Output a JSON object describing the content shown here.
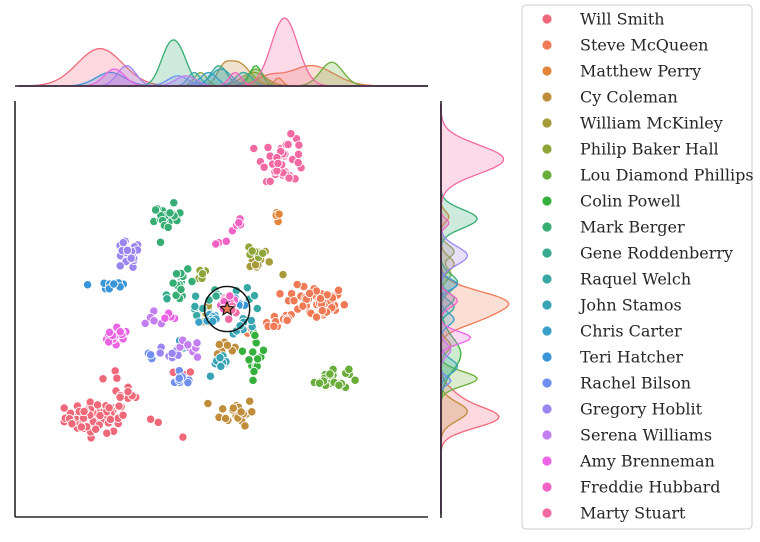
{
  "chart_data": {
    "type": "scatter",
    "title": "",
    "xlabel": "",
    "ylabel": "",
    "grid": false,
    "legend_placement": "right",
    "xlim": [
      -10,
      10
    ],
    "ylim": [
      -10,
      10
    ],
    "marker": {
      "x": 0.2,
      "y": 0.0,
      "ring_radius": 1.1,
      "symbol": "star"
    },
    "series": [
      {
        "name": "Will Smith",
        "color": "#f0697a",
        "clusters": [
          [
            -6.2,
            -5.3,
            1.0,
            0.5,
            70
          ],
          [
            -4.5,
            -4.3,
            1.6,
            0.4,
            14,
            -0.7
          ],
          [
            -2.6,
            -3.2,
            0.9,
            0.2,
            5
          ]
        ]
      },
      {
        "name": "Steve McQueen",
        "color": "#f07a55",
        "clusters": [
          [
            4.5,
            0.3,
            1.0,
            0.55,
            48
          ],
          [
            2.6,
            -0.6,
            0.6,
            0.3,
            10
          ],
          [
            1.4,
            -0.9,
            0.3,
            0.3,
            5
          ]
        ]
      },
      {
        "name": "Matthew Perry",
        "color": "#e2853a",
        "clusters": [
          [
            2.7,
            4.5,
            0.15,
            0.25,
            6
          ]
        ]
      },
      {
        "name": "Cy Coleman",
        "color": "#c08d3a",
        "clusters": [
          [
            0.7,
            -5.0,
            0.55,
            0.45,
            24
          ],
          [
            0.0,
            -1.8,
            0.35,
            0.25,
            7
          ]
        ]
      },
      {
        "name": "William McKinley",
        "color": "#a69a3a",
        "clusters": [
          [
            -0.8,
            -0.1,
            0.2,
            0.3,
            5
          ],
          [
            1.7,
            2.2,
            0.6,
            0.35,
            10
          ]
        ]
      },
      {
        "name": "Philip Baker Hall",
        "color": "#8ea53a",
        "clusters": [
          [
            1.6,
            2.8,
            0.25,
            0.25,
            6
          ],
          [
            -1.1,
            1.7,
            0.3,
            0.3,
            7
          ]
        ]
      },
      {
        "name": "Lou Diamond Phillips",
        "color": "#6aae3a",
        "clusters": [
          [
            5.3,
            -3.4,
            0.55,
            0.35,
            26
          ]
        ]
      },
      {
        "name": "Colin Powell",
        "color": "#36b03c",
        "clusters": [
          [
            1.6,
            -2.2,
            0.3,
            0.8,
            14
          ]
        ]
      },
      {
        "name": "Mark Berger",
        "color": "#36ad73",
        "clusters": [
          [
            -2.7,
            4.4,
            0.45,
            0.45,
            24
          ],
          [
            -2.0,
            1.3,
            0.4,
            0.4,
            14
          ]
        ]
      },
      {
        "name": "Gene Roddenberry",
        "color": "#36ab8f",
        "clusters": [
          [
            -0.2,
            0.5,
            0.4,
            0.3,
            8
          ],
          [
            -2.8,
            0.5,
            0.2,
            0.2,
            3
          ]
        ]
      },
      {
        "name": "Raquel Welch",
        "color": "#37a8a3",
        "clusters": [
          [
            -1.4,
            0.1,
            0.3,
            0.3,
            6
          ],
          [
            1.0,
            0.6,
            0.4,
            0.3,
            6
          ]
        ]
      },
      {
        "name": "John Stamos",
        "color": "#38a3b5",
        "clusters": [
          [
            -0.1,
            -2.8,
            0.5,
            0.35,
            10
          ],
          [
            1.1,
            -0.8,
            0.4,
            0.3,
            8
          ]
        ]
      },
      {
        "name": "Chris Carter",
        "color": "#39a0c8",
        "clusters": [
          [
            -0.7,
            -0.5,
            0.4,
            0.3,
            8
          ],
          [
            -1.8,
            -1.7,
            0.3,
            0.25,
            4
          ]
        ]
      },
      {
        "name": "Teri Hatcher",
        "color": "#3a95d8",
        "clusters": [
          [
            -5.5,
            1.2,
            0.7,
            0.25,
            12
          ],
          [
            0.8,
            0.3,
            0.3,
            0.3,
            6
          ]
        ]
      },
      {
        "name": "Rachel Bilson",
        "color": "#6e8ff0",
        "clusters": [
          [
            -2.0,
            -3.5,
            0.4,
            0.2,
            8
          ],
          [
            -3.5,
            -2.2,
            0.25,
            0.2,
            3
          ]
        ]
      },
      {
        "name": "Gregory Hoblit",
        "color": "#9b85f0",
        "clusters": [
          [
            -4.7,
            2.6,
            0.45,
            0.45,
            24
          ],
          [
            -2.5,
            -2.2,
            0.5,
            0.3,
            8
          ]
        ]
      },
      {
        "name": "Serena Williams",
        "color": "#c37ef0",
        "clusters": [
          [
            -1.8,
            -2.0,
            0.5,
            0.3,
            8
          ],
          [
            -3.2,
            -0.5,
            0.3,
            0.3,
            5
          ]
        ]
      },
      {
        "name": "Amy Brenneman",
        "color": "#ea64e4",
        "clusters": [
          [
            -5.3,
            -1.4,
            0.5,
            0.28,
            18
          ],
          [
            -2.5,
            -0.3,
            0.2,
            0.2,
            4
          ]
        ]
      },
      {
        "name": "Freddie Hubbard",
        "color": "#f063c4",
        "clusters": [
          [
            0.8,
            4.2,
            0.2,
            0.2,
            6
          ],
          [
            -0.2,
            3.2,
            0.2,
            0.2,
            3
          ],
          [
            0.3,
            0.4,
            0.35,
            0.3,
            10
          ]
        ]
      },
      {
        "name": "Marty Stuart",
        "color": "#f26aa3",
        "clusters": [
          [
            3.0,
            7.3,
            0.7,
            0.7,
            40
          ],
          [
            0.6,
            -0.2,
            0.3,
            0.3,
            6
          ]
        ]
      }
    ],
    "x_marginal_density": [
      {
        "name": "Will Smith",
        "peaks": [
          [
            -6.0,
            1.1,
            0.55
          ]
        ]
      },
      {
        "name": "Steve McQueen",
        "peaks": [
          [
            4.3,
            1.1,
            0.3
          ],
          [
            2.2,
            0.6,
            0.12
          ]
        ]
      },
      {
        "name": "Matthew Perry",
        "peaks": [
          [
            2.7,
            0.2,
            0.12
          ]
        ]
      },
      {
        "name": "Cy Coleman",
        "peaks": [
          [
            0.7,
            0.6,
            0.35
          ],
          [
            0.0,
            0.3,
            0.15
          ]
        ]
      },
      {
        "name": "William McKinley",
        "peaks": [
          [
            1.5,
            0.6,
            0.2
          ]
        ]
      },
      {
        "name": "Philip Baker Hall",
        "peaks": [
          [
            1.6,
            0.4,
            0.25
          ],
          [
            -1.1,
            0.3,
            0.2
          ]
        ]
      },
      {
        "name": "Lou Diamond Phillips",
        "peaks": [
          [
            5.3,
            0.55,
            0.35
          ]
        ]
      },
      {
        "name": "Colin Powell",
        "peaks": [
          [
            1.6,
            0.3,
            0.3
          ]
        ]
      },
      {
        "name": "Mark Berger",
        "peaks": [
          [
            -2.6,
            0.45,
            0.55
          ],
          [
            -2.0,
            0.4,
            0.3
          ]
        ]
      },
      {
        "name": "Gene Roddenberry",
        "peaks": [
          [
            -0.2,
            0.4,
            0.3
          ]
        ]
      },
      {
        "name": "Raquel Welch",
        "peaks": [
          [
            -1.4,
            0.3,
            0.2
          ],
          [
            1.0,
            0.4,
            0.2
          ]
        ]
      },
      {
        "name": "John Stamos",
        "peaks": [
          [
            -0.1,
            0.5,
            0.25
          ]
        ]
      },
      {
        "name": "Chris Carter",
        "peaks": [
          [
            -0.7,
            0.4,
            0.2
          ]
        ]
      },
      {
        "name": "Teri Hatcher",
        "peaks": [
          [
            -5.5,
            0.7,
            0.2
          ]
        ]
      },
      {
        "name": "Rachel Bilson",
        "peaks": [
          [
            -2.2,
            0.5,
            0.15
          ]
        ]
      },
      {
        "name": "Gregory Hoblit",
        "peaks": [
          [
            -4.7,
            0.45,
            0.3
          ]
        ]
      },
      {
        "name": "Serena Williams",
        "peaks": [
          [
            -1.8,
            0.5,
            0.15
          ]
        ]
      },
      {
        "name": "Amy Brenneman",
        "peaks": [
          [
            -5.3,
            0.5,
            0.25
          ]
        ]
      },
      {
        "name": "Freddie Hubbard",
        "peaks": [
          [
            0.6,
            0.3,
            0.2
          ]
        ]
      },
      {
        "name": "Marty Stuart",
        "peaks": [
          [
            3.0,
            0.65,
            1.0
          ]
        ]
      }
    ],
    "y_marginal_density": [
      {
        "name": "Will Smith",
        "peaks": [
          [
            -5.3,
            0.5,
            0.85
          ],
          [
            -4.3,
            0.5,
            0.2
          ]
        ]
      },
      {
        "name": "Steve McQueen",
        "peaks": [
          [
            0.3,
            0.55,
            1.0
          ],
          [
            -0.6,
            0.4,
            0.3
          ]
        ]
      },
      {
        "name": "Matthew Perry",
        "peaks": [
          [
            4.5,
            0.25,
            0.12
          ]
        ]
      },
      {
        "name": "Cy Coleman",
        "peaks": [
          [
            -5.0,
            0.45,
            0.4
          ],
          [
            -1.8,
            0.3,
            0.15
          ]
        ]
      },
      {
        "name": "William McKinley",
        "peaks": [
          [
            2.2,
            0.35,
            0.2
          ]
        ]
      },
      {
        "name": "Philip Baker Hall",
        "peaks": [
          [
            2.8,
            0.3,
            0.2
          ],
          [
            1.7,
            0.3,
            0.15
          ]
        ]
      },
      {
        "name": "Lou Diamond Phillips",
        "peaks": [
          [
            -3.4,
            0.35,
            0.55
          ]
        ]
      },
      {
        "name": "Colin Powell",
        "peaks": [
          [
            -2.2,
            0.8,
            0.3
          ]
        ]
      },
      {
        "name": "Mark Berger",
        "peaks": [
          [
            4.4,
            0.45,
            0.55
          ],
          [
            1.3,
            0.4,
            0.25
          ]
        ]
      },
      {
        "name": "Gene Roddenberry",
        "peaks": [
          [
            0.5,
            0.3,
            0.2
          ]
        ]
      },
      {
        "name": "Raquel Welch",
        "peaks": [
          [
            0.1,
            0.3,
            0.2
          ]
        ]
      },
      {
        "name": "John Stamos",
        "peaks": [
          [
            -2.8,
            0.35,
            0.25
          ]
        ]
      },
      {
        "name": "Chris Carter",
        "peaks": [
          [
            -0.5,
            0.3,
            0.2
          ]
        ]
      },
      {
        "name": "Teri Hatcher",
        "peaks": [
          [
            1.2,
            0.25,
            0.25
          ]
        ]
      },
      {
        "name": "Rachel Bilson",
        "peaks": [
          [
            -3.5,
            0.2,
            0.15
          ]
        ]
      },
      {
        "name": "Gregory Hoblit",
        "peaks": [
          [
            2.6,
            0.45,
            0.4
          ]
        ]
      },
      {
        "name": "Serena Williams",
        "peaks": [
          [
            -2.0,
            0.3,
            0.15
          ]
        ]
      },
      {
        "name": "Amy Brenneman",
        "peaks": [
          [
            -1.4,
            0.3,
            0.45
          ]
        ]
      },
      {
        "name": "Freddie Hubbard",
        "peaks": [
          [
            4.2,
            0.2,
            0.12
          ],
          [
            0.4,
            0.3,
            0.25
          ]
        ]
      },
      {
        "name": "Marty Stuart",
        "peaks": [
          [
            7.3,
            0.7,
            0.95
          ]
        ]
      }
    ]
  }
}
